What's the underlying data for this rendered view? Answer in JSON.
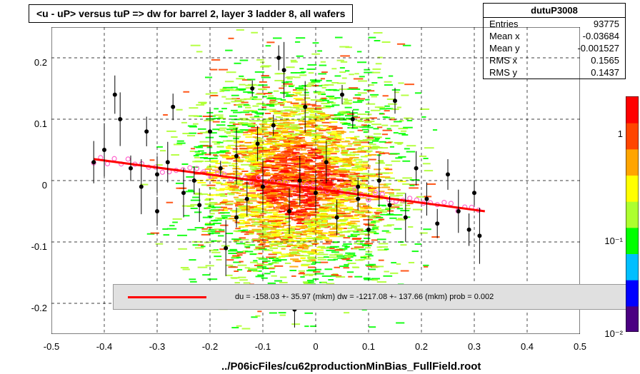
{
  "title": "<u - uP>       versus  tuP =>  dw for barrel 2, layer 3 ladder 8, all wafers",
  "stats": {
    "name": "dutuP3008",
    "entries": "93775",
    "meanx_label": "Mean x",
    "meanx": "-0.03684",
    "meany_label": "Mean y",
    "meany": "-0.001527",
    "rmsx_label": "RMS x",
    "rmsx": "0.1565",
    "rmsy_label": "RMS y",
    "rmsy": "0.1437",
    "entries_label": "Entries"
  },
  "chart": {
    "type": "2d-histogram-scatter",
    "xlim": [
      -0.5,
      0.5
    ],
    "ylim": [
      -0.25,
      0.25
    ],
    "xtick_step": 0.1,
    "ytick_step": 0.1,
    "xticks": [
      "-0.5",
      "-0.4",
      "-0.3",
      "-0.2",
      "-0.1",
      "0",
      "0.1",
      "0.2",
      "0.3",
      "0.4",
      "0.5"
    ],
    "yticks": [
      "-0.2",
      "-0.1",
      "0",
      "0.1",
      "0.2"
    ],
    "background_color": "#ffffff",
    "grid_color": "#000000",
    "grid_dash": true,
    "fit_line": {
      "color": "#ff0000",
      "width": 3,
      "x1": -0.42,
      "y1": 0.035,
      "x2": 0.32,
      "y2": -0.05
    },
    "scatter_color": "#000000",
    "scatter_marker": "circle",
    "scatter_size": 6,
    "profile_marker_color": "#ff66cc",
    "profile_marker": "open-circle",
    "heatmap_colors": [
      "#4b0082",
      "#0000ff",
      "#00bfff",
      "#00ff00",
      "#adff2f",
      "#ffff00",
      "#ffa500",
      "#ff4500",
      "#ff0000"
    ],
    "colorbar_scale": "log",
    "colorbar_ticks": [
      "1",
      "10⁻¹",
      "10⁻²"
    ],
    "scatter_points": [
      [
        -0.42,
        0.03
      ],
      [
        -0.4,
        0.05
      ],
      [
        -0.38,
        0.14
      ],
      [
        -0.37,
        0.1
      ],
      [
        -0.35,
        0.02
      ],
      [
        -0.33,
        -0.01
      ],
      [
        -0.32,
        0.08
      ],
      [
        -0.3,
        -0.05
      ],
      [
        -0.28,
        0.03
      ],
      [
        -0.27,
        0.12
      ],
      [
        -0.25,
        -0.02
      ],
      [
        -0.23,
        0.0
      ],
      [
        -0.22,
        -0.04
      ],
      [
        -0.2,
        0.08
      ],
      [
        -0.18,
        0.02
      ],
      [
        -0.17,
        -0.11
      ],
      [
        -0.15,
        0.04
      ],
      [
        -0.13,
        -0.03
      ],
      [
        -0.12,
        0.15
      ],
      [
        -0.1,
        -0.01
      ],
      [
        -0.08,
        0.09
      ],
      [
        -0.07,
        0.2
      ],
      [
        -0.06,
        0.18
      ],
      [
        -0.05,
        -0.05
      ],
      [
        -0.03,
        0.0
      ],
      [
        -0.02,
        0.12
      ],
      [
        0.0,
        -0.02
      ],
      [
        0.02,
        0.03
      ],
      [
        0.04,
        -0.06
      ],
      [
        0.05,
        0.14
      ],
      [
        0.07,
        0.1
      ],
      [
        0.08,
        -0.01
      ],
      [
        0.1,
        -0.08
      ],
      [
        0.12,
        0.0
      ],
      [
        0.14,
        -0.04
      ],
      [
        0.15,
        0.13
      ],
      [
        0.17,
        -0.06
      ],
      [
        0.19,
        0.02
      ],
      [
        0.21,
        -0.03
      ],
      [
        0.23,
        -0.07
      ],
      [
        0.25,
        0.01
      ],
      [
        0.27,
        -0.05
      ],
      [
        0.29,
        -0.08
      ],
      [
        0.3,
        -0.02
      ],
      [
        0.31,
        -0.09
      ],
      [
        -0.04,
        -0.21
      ],
      [
        0.08,
        -0.03
      ],
      [
        -0.15,
        -0.06
      ],
      [
        -0.3,
        0.01
      ],
      [
        -0.11,
        0.06
      ]
    ]
  },
  "legend": {
    "text": "du = -158.03 +- 35.97 (mkm) dw = -1217.08 +- 137.66 (mkm) prob = 0.002",
    "bg_color": "#e0e0e0",
    "line_color": "#ff0000"
  },
  "footer": "../P06icFiles/cu62productionMinBias_FullField.root"
}
